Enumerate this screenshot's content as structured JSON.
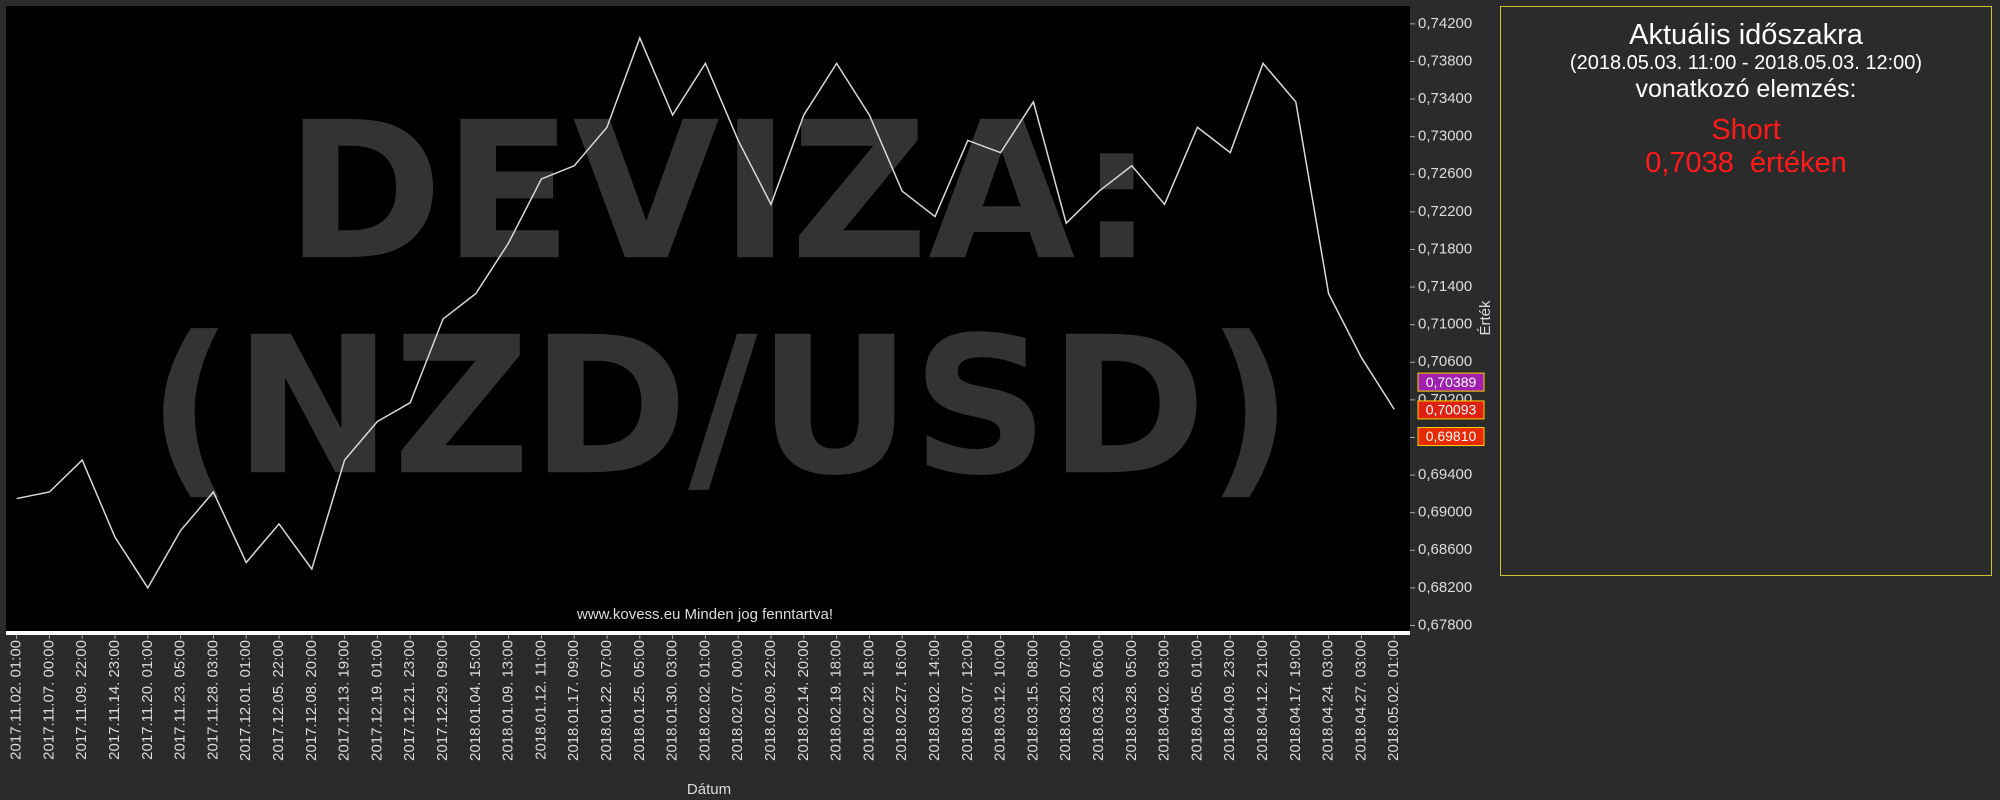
{
  "chart_data": {
    "type": "line",
    "watermark": [
      "DEVIZA:",
      "(NZD/USD)"
    ],
    "footer_note": "www.kovess.eu Minden jog fenntartva!",
    "x_label": "Dátum",
    "y_label": "Érték",
    "categories": [
      "2017.11.02. 01:00",
      "2017.11.07. 00:00",
      "2017.11.09. 22:00",
      "2017.11.14. 23:00",
      "2017.11.20. 01:00",
      "2017.11.23. 05:00",
      "2017.11.28. 03:00",
      "2017.12.01. 01:00",
      "2017.12.05. 22:00",
      "2017.12.08. 20:00",
      "2017.12.13. 19:00",
      "2017.12.19. 01:00",
      "2017.12.21. 23:00",
      "2017.12.29. 09:00",
      "2018.01.04. 15:00",
      "2018.01.09. 13:00",
      "2018.01.12. 11:00",
      "2018.01.17. 09:00",
      "2018.01.22. 07:00",
      "2018.01.25. 05:00",
      "2018.01.30. 03:00",
      "2018.02.02. 01:00",
      "2018.02.07. 00:00",
      "2018.02.09. 22:00",
      "2018.02.14. 20:00",
      "2018.02.19. 18:00",
      "2018.02.22. 18:00",
      "2018.02.27. 16:00",
      "2018.03.02. 14:00",
      "2018.03.07. 12:00",
      "2018.03.12. 10:00",
      "2018.03.15. 08:00",
      "2018.03.20. 07:00",
      "2018.03.23. 06:00",
      "2018.03.28. 05:00",
      "2018.04.02. 03:00",
      "2018.04.05. 01:00",
      "2018.04.09. 23:00",
      "2018.04.12. 21:00",
      "2018.04.17. 19:00",
      "2018.04.24. 03:00",
      "2018.04.27. 03:00",
      "2018.05.02. 01:00"
    ],
    "series": [
      {
        "color": "#d8d8d8",
        "values": [
          0.6915,
          0.6922,
          0.6956,
          0.6874,
          0.682,
          0.6881,
          0.6922,
          0.6847,
          0.6888,
          0.684,
          0.6956,
          0.6997,
          0.7017,
          0.7106,
          0.7133,
          0.7187,
          0.7255,
          0.7269,
          0.731,
          0.7405,
          0.7323,
          0.7378,
          0.7296,
          0.7228,
          0.7323,
          0.7378,
          0.7323,
          0.7242,
          0.7215,
          0.7296,
          0.7283,
          0.7337,
          0.7208,
          0.7242,
          0.7269,
          0.7228,
          0.731,
          0.7283,
          0.7378,
          0.7337,
          0.7133,
          0.7065,
          0.701
        ]
      }
    ],
    "ylim": [
      0.6772,
      0.7439
    ],
    "yticks": [
      {
        "value": 0.678,
        "label": "0,67800"
      },
      {
        "value": 0.682,
        "label": "0,68200"
      },
      {
        "value": 0.686,
        "label": "0,68600"
      },
      {
        "value": 0.69,
        "label": "0,69000"
      },
      {
        "value": 0.694,
        "label": "0,69400"
      },
      {
        "value": 0.698,
        "label": "0,69800"
      },
      {
        "value": 0.702,
        "label": "0,70200"
      },
      {
        "value": 0.706,
        "label": "0,70600"
      },
      {
        "value": 0.71,
        "label": "0,71000"
      },
      {
        "value": 0.714,
        "label": "0,71400"
      },
      {
        "value": 0.718,
        "label": "0,71800"
      },
      {
        "value": 0.722,
        "label": "0,72200"
      },
      {
        "value": 0.726,
        "label": "0,72600"
      },
      {
        "value": 0.73,
        "label": "0,73000"
      },
      {
        "value": 0.734,
        "label": "0,73400"
      },
      {
        "value": 0.738,
        "label": "0,73800"
      },
      {
        "value": 0.742,
        "label": "0,74200"
      }
    ],
    "price_tags": [
      {
        "value": 0.70389,
        "label": "0,70389",
        "color": "#a020b0"
      },
      {
        "value": 0.70093,
        "label": "0,70093",
        "color": "#e02010"
      },
      {
        "value": 0.6981,
        "label": "0,69810",
        "color": "#e82a00"
      }
    ]
  },
  "analysis_panel": {
    "title": "Aktuális időszakra",
    "period": "(2018.05.03. 11:00 - 2018.05.03. 12:00)",
    "subtitle": "vonatkozó elemzés:",
    "signal": "Short",
    "price": "0,7038",
    "price_suffix": "értéken"
  }
}
